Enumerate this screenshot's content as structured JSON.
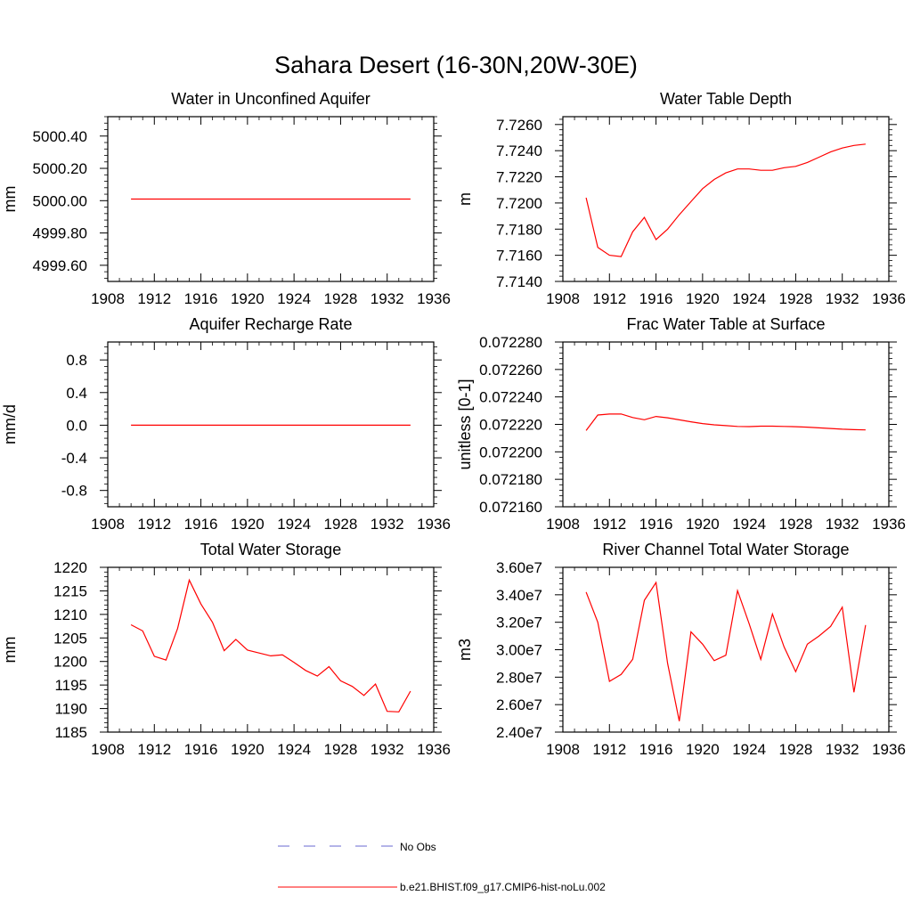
{
  "figure": {
    "title": "Sahara Desert (16-30N,20W-30E)",
    "colors": {
      "model": "#ff0000",
      "obs": "#6a6ad0",
      "axis": "#000000"
    },
    "legend": [
      {
        "label": "No Obs",
        "style": "dashed",
        "color": "#6a6ad0"
      },
      {
        "label": "b.e21.BHIST.f09_g17.CMIP6-hist-noLu.002",
        "style": "solid",
        "color": "#ff0000"
      }
    ]
  },
  "chart_data": [
    {
      "type": "line",
      "title": "Water in Unconfined Aquifer",
      "ylabel": "mm",
      "xlim": [
        1908,
        1936
      ],
      "xticks": [
        1908,
        1912,
        1916,
        1920,
        1924,
        1928,
        1932,
        1936
      ],
      "ylim": [
        4999.5,
        5000.52
      ],
      "yticks": [
        4999.6,
        4999.8,
        5000.0,
        5000.2,
        5000.4
      ],
      "ytick_labels": [
        "4999.60",
        "4999.80",
        "5000.00",
        "5000.20",
        "5000.40"
      ],
      "x": [
        1910,
        1911,
        1912,
        1913,
        1914,
        1915,
        1916,
        1917,
        1918,
        1919,
        1920,
        1921,
        1922,
        1923,
        1924,
        1925,
        1926,
        1927,
        1928,
        1929,
        1930,
        1931,
        1932,
        1933,
        1934
      ],
      "values": [
        5000.01,
        5000.01,
        5000.01,
        5000.01,
        5000.01,
        5000.01,
        5000.01,
        5000.01,
        5000.01,
        5000.01,
        5000.01,
        5000.01,
        5000.01,
        5000.01,
        5000.01,
        5000.01,
        5000.01,
        5000.01,
        5000.01,
        5000.01,
        5000.01,
        5000.01,
        5000.01,
        5000.01,
        5000.01
      ]
    },
    {
      "type": "line",
      "title": "Water Table Depth",
      "ylabel": "m",
      "xlim": [
        1908,
        1936
      ],
      "xticks": [
        1908,
        1912,
        1916,
        1920,
        1924,
        1928,
        1932,
        1936
      ],
      "ylim": [
        7.714,
        7.7266
      ],
      "yticks": [
        7.714,
        7.716,
        7.718,
        7.72,
        7.722,
        7.724,
        7.726
      ],
      "ytick_labels": [
        "7.7140",
        "7.7160",
        "7.7180",
        "7.7200",
        "7.7220",
        "7.7240",
        "7.7260"
      ],
      "x": [
        1910,
        1911,
        1912,
        1913,
        1914,
        1915,
        1916,
        1917,
        1918,
        1919,
        1920,
        1921,
        1922,
        1923,
        1924,
        1925,
        1926,
        1927,
        1928,
        1929,
        1930,
        1931,
        1932,
        1933,
        1934
      ],
      "values": [
        7.7204,
        7.7166,
        7.716,
        7.7159,
        7.7178,
        7.7189,
        7.7172,
        7.718,
        7.7191,
        7.7201,
        7.7211,
        7.7218,
        7.7223,
        7.7226,
        7.7226,
        7.7225,
        7.7225,
        7.7227,
        7.7228,
        7.7231,
        7.7235,
        7.7239,
        7.7242,
        7.7244,
        7.7245
      ]
    },
    {
      "type": "line",
      "title": "Aquifer Recharge Rate",
      "ylabel": "mm/d",
      "xlim": [
        1908,
        1936
      ],
      "xticks": [
        1908,
        1912,
        1916,
        1920,
        1924,
        1928,
        1932,
        1936
      ],
      "ylim": [
        -1.0,
        1.02
      ],
      "yticks": [
        -0.8,
        -0.4,
        0.0,
        0.4,
        0.8
      ],
      "ytick_labels": [
        "-0.8",
        "-0.4",
        "0.0",
        "0.4",
        "0.8"
      ],
      "x": [
        1910,
        1911,
        1912,
        1913,
        1914,
        1915,
        1916,
        1917,
        1918,
        1919,
        1920,
        1921,
        1922,
        1923,
        1924,
        1925,
        1926,
        1927,
        1928,
        1929,
        1930,
        1931,
        1932,
        1933,
        1934
      ],
      "values": [
        0.0,
        0.0,
        0.0,
        0.0,
        0.0,
        0.0,
        0.0,
        0.0,
        0.0,
        0.0,
        0.0,
        0.0,
        0.0,
        0.0,
        0.0,
        0.0,
        0.0,
        0.0,
        0.0,
        0.0,
        0.0,
        0.0,
        0.0,
        0.0,
        0.0
      ]
    },
    {
      "type": "line",
      "title": "Frac Water Table at Surface",
      "ylabel": "unitless [0-1]",
      "xlim": [
        1908,
        1936
      ],
      "xticks": [
        1908,
        1912,
        1916,
        1920,
        1924,
        1928,
        1932,
        1936
      ],
      "ylim": [
        0.07216,
        0.07228
      ],
      "yticks": [
        0.07216,
        0.07218,
        0.0722,
        0.07222,
        0.07224,
        0.07226,
        0.07228
      ],
      "ytick_labels": [
        "0.072160",
        "0.072180",
        "0.072200",
        "0.072220",
        "0.072240",
        "0.072260",
        "0.072280"
      ],
      "x": [
        1910,
        1911,
        1912,
        1913,
        1914,
        1915,
        1916,
        1917,
        1918,
        1919,
        1920,
        1921,
        1922,
        1923,
        1924,
        1925,
        1926,
        1927,
        1928,
        1929,
        1930,
        1931,
        1932,
        1933,
        1934
      ],
      "values": [
        0.0722155,
        0.0722268,
        0.0722275,
        0.0722276,
        0.072225,
        0.0722234,
        0.0722258,
        0.0722248,
        0.0722233,
        0.0722219,
        0.0722206,
        0.0722197,
        0.0722191,
        0.0722185,
        0.0722184,
        0.0722187,
        0.0722187,
        0.0722185,
        0.0722183,
        0.072218,
        0.0722175,
        0.072217,
        0.0722165,
        0.0722162,
        0.072216
      ]
    },
    {
      "type": "line",
      "title": "Total Water Storage",
      "ylabel": "mm",
      "xlim": [
        1908,
        1936
      ],
      "xticks": [
        1908,
        1912,
        1916,
        1920,
        1924,
        1928,
        1932,
        1936
      ],
      "ylim": [
        1185,
        1220
      ],
      "yticks": [
        1185,
        1190,
        1195,
        1200,
        1205,
        1210,
        1215,
        1220
      ],
      "ytick_labels": [
        "1185",
        "1190",
        "1195",
        "1200",
        "1205",
        "1210",
        "1215",
        "1220"
      ],
      "x": [
        1910,
        1911,
        1912,
        1913,
        1914,
        1915,
        1916,
        1917,
        1918,
        1919,
        1920,
        1921,
        1922,
        1923,
        1924,
        1925,
        1926,
        1927,
        1928,
        1929,
        1930,
        1931,
        1932,
        1933,
        1934
      ],
      "values": [
        1207.8,
        1206.5,
        1201.1,
        1200.3,
        1207.0,
        1217.3,
        1212.2,
        1208.3,
        1202.3,
        1204.7,
        1202.4,
        1201.8,
        1201.2,
        1201.4,
        1199.8,
        1198.1,
        1196.9,
        1198.9,
        1195.9,
        1194.7,
        1192.8,
        1195.2,
        1189.4,
        1189.3,
        1193.7
      ]
    },
    {
      "type": "line",
      "title": "River Channel Total Water Storage",
      "ylabel": "m3",
      "xlim": [
        1908,
        1936
      ],
      "xticks": [
        1908,
        1912,
        1916,
        1920,
        1924,
        1928,
        1932,
        1936
      ],
      "ylim": [
        24000000,
        36000000
      ],
      "yticks": [
        24000000,
        26000000,
        28000000,
        30000000,
        32000000,
        34000000,
        36000000
      ],
      "ytick_labels": [
        "2.40e7",
        "2.60e7",
        "2.80e7",
        "3.00e7",
        "3.20e7",
        "3.40e7",
        "3.60e7"
      ],
      "x": [
        1910,
        1911,
        1912,
        1913,
        1914,
        1915,
        1916,
        1917,
        1918,
        1919,
        1920,
        1921,
        1922,
        1923,
        1924,
        1925,
        1926,
        1927,
        1928,
        1929,
        1930,
        1931,
        1932,
        1933,
        1934
      ],
      "values": [
        34200000,
        32000000,
        27700000,
        28200000,
        29300000,
        33600000,
        34900000,
        29000000,
        24800000,
        31300000,
        30400000,
        29200000,
        29600000,
        34300000,
        31900000,
        29300000,
        32600000,
        30200000,
        28400000,
        30400000,
        31000000,
        31700000,
        33100000,
        26900000,
        31800000
      ]
    }
  ]
}
